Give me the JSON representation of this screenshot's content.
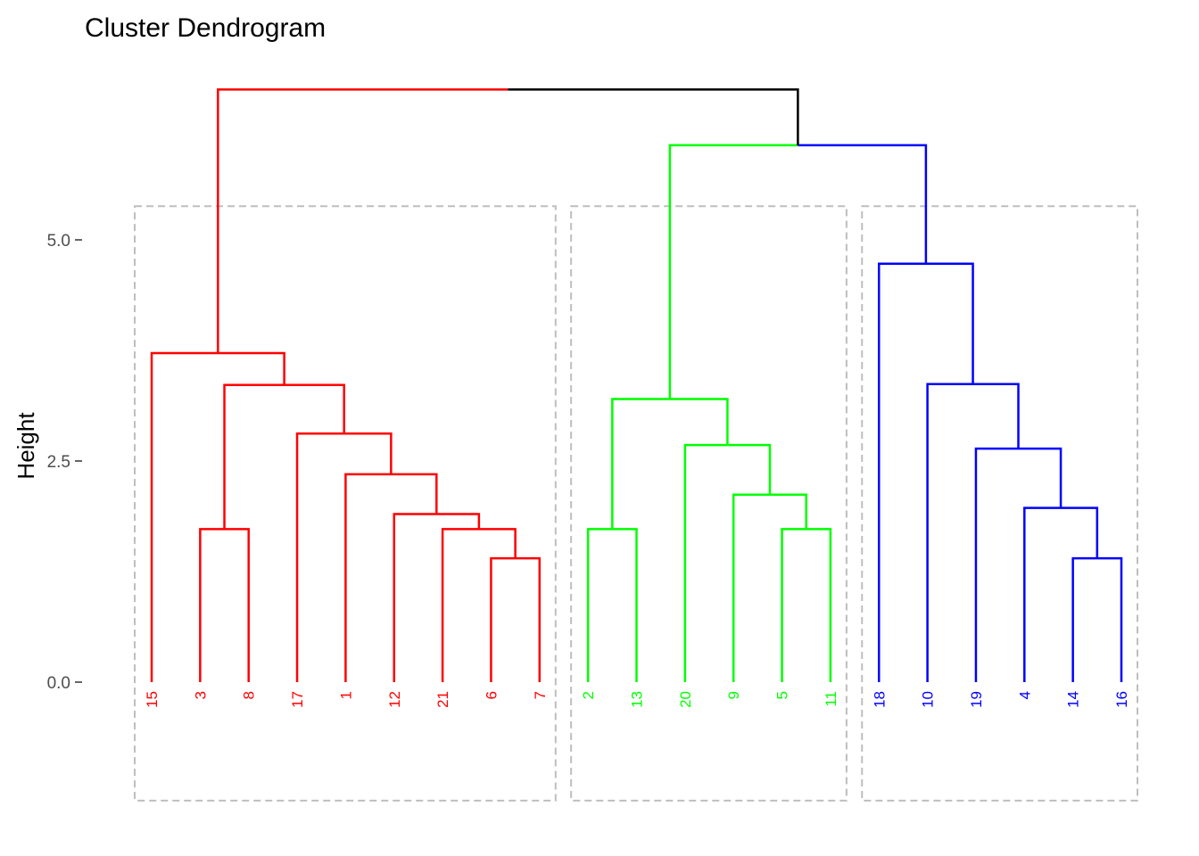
{
  "chart_data": {
    "type": "dendrogram",
    "title": "Cluster Dendrogram",
    "ylabel": "Height",
    "xlabel": "",
    "ylim": [
      -1.35,
      6.75
    ],
    "yticks": [
      {
        "value": 0.0,
        "label": "0.0"
      },
      {
        "value": 2.5,
        "label": "2.5"
      },
      {
        "value": 5.0,
        "label": "5.0"
      }
    ],
    "grid": false,
    "legend": "none",
    "leaves": [
      {
        "label": "15",
        "cluster": 1
      },
      {
        "label": "3",
        "cluster": 1
      },
      {
        "label": "8",
        "cluster": 1
      },
      {
        "label": "17",
        "cluster": 1
      },
      {
        "label": "1",
        "cluster": 1
      },
      {
        "label": "12",
        "cluster": 1
      },
      {
        "label": "21",
        "cluster": 1
      },
      {
        "label": "6",
        "cluster": 1
      },
      {
        "label": "7",
        "cluster": 1
      },
      {
        "label": "2",
        "cluster": 2
      },
      {
        "label": "13",
        "cluster": 2
      },
      {
        "label": "20",
        "cluster": 2
      },
      {
        "label": "9",
        "cluster": 2
      },
      {
        "label": "5",
        "cluster": 2
      },
      {
        "label": "11",
        "cluster": 2
      },
      {
        "label": "18",
        "cluster": 3
      },
      {
        "label": "10",
        "cluster": 3
      },
      {
        "label": "19",
        "cluster": 3
      },
      {
        "label": "4",
        "cluster": 3
      },
      {
        "label": "14",
        "cluster": 3
      },
      {
        "label": "16",
        "cluster": 3
      }
    ],
    "merges": [
      {
        "id": "m1",
        "left": "6",
        "right": "7",
        "height": 1.4,
        "cluster": 1
      },
      {
        "id": "m2",
        "left": "21",
        "right": "m1",
        "height": 1.73,
        "cluster": 1
      },
      {
        "id": "m3",
        "left": "12",
        "right": "m2",
        "height": 1.9,
        "cluster": 1
      },
      {
        "id": "m4",
        "left": "1",
        "right": "m3",
        "height": 2.35,
        "cluster": 1
      },
      {
        "id": "m5",
        "left": "17",
        "right": "m4",
        "height": 2.81,
        "cluster": 1
      },
      {
        "id": "m6",
        "left": "3",
        "right": "8",
        "height": 1.73,
        "cluster": 1
      },
      {
        "id": "m7",
        "left": "m6",
        "right": "m5",
        "height": 3.36,
        "cluster": 1
      },
      {
        "id": "m8",
        "left": "15",
        "right": "m7",
        "height": 3.72,
        "cluster": 1
      },
      {
        "id": "m9",
        "left": "5",
        "right": "11",
        "height": 1.73,
        "cluster": 2
      },
      {
        "id": "m10",
        "left": "9",
        "right": "m9",
        "height": 2.12,
        "cluster": 2
      },
      {
        "id": "m11",
        "left": "20",
        "right": "m10",
        "height": 2.68,
        "cluster": 2
      },
      {
        "id": "m12",
        "left": "2",
        "right": "13",
        "height": 1.73,
        "cluster": 2
      },
      {
        "id": "m13",
        "left": "m12",
        "right": "m11",
        "height": 3.2,
        "cluster": 2
      },
      {
        "id": "m14",
        "left": "14",
        "right": "16",
        "height": 1.4,
        "cluster": 3
      },
      {
        "id": "m15",
        "left": "4",
        "right": "m14",
        "height": 1.97,
        "cluster": 3
      },
      {
        "id": "m16",
        "left": "19",
        "right": "m15",
        "height": 2.64,
        "cluster": 3
      },
      {
        "id": "m17",
        "left": "10",
        "right": "m16",
        "height": 3.37,
        "cluster": 3
      },
      {
        "id": "m18",
        "left": "18",
        "right": "m17",
        "height": 4.73,
        "cluster": 3
      },
      {
        "id": "m19",
        "left": "m13",
        "right": "m18",
        "height": 6.07,
        "cluster": 0
      },
      {
        "id": "m20",
        "left": "m8",
        "right": "m19",
        "height": 6.7,
        "cluster": 0
      }
    ],
    "cluster_colors": {
      "0": "#000000",
      "1": "#ff0000",
      "2": "#00ff00",
      "3": "#0000ff"
    },
    "box_color": "#bebebe",
    "rect_top_height": 5.38,
    "rect_bottom_height": -1.34
  }
}
